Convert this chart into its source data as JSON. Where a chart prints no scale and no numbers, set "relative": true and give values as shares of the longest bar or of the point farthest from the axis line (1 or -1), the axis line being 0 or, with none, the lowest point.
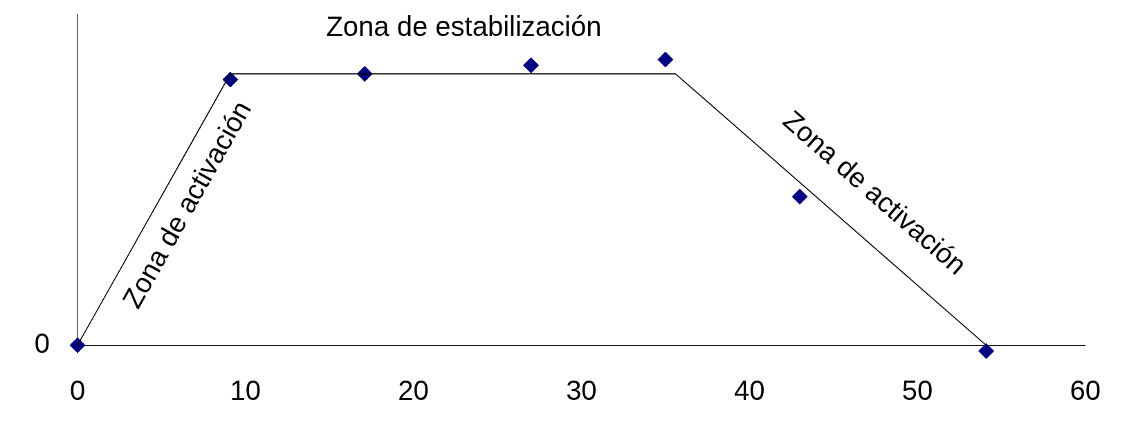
{
  "chart_data": {
    "type": "scatter",
    "relative": true,
    "xlim": [
      0,
      60
    ],
    "xticks": [
      0,
      10,
      20,
      30,
      40,
      50,
      60
    ],
    "grid": false,
    "legend": false,
    "series": [
      {
        "marker": "diamond",
        "color": "#000080",
        "x": [
          0,
          9.1,
          17.1,
          27.0,
          35.0,
          43.0,
          54.1
        ],
        "values": [
          0,
          0.93,
          0.95,
          0.98,
          1,
          0.52,
          -0.02
        ]
      },
      {
        "type": "line",
        "marker": "none",
        "color": "#000000",
        "x": [
          0,
          9.1,
          35.6,
          54.1
        ],
        "values": [
          0,
          0.95,
          0.95,
          0
        ]
      }
    ],
    "annotations": [
      "Zona de estabilización",
      "Zona de activación",
      "Zona de activación",
      "0"
    ]
  }
}
